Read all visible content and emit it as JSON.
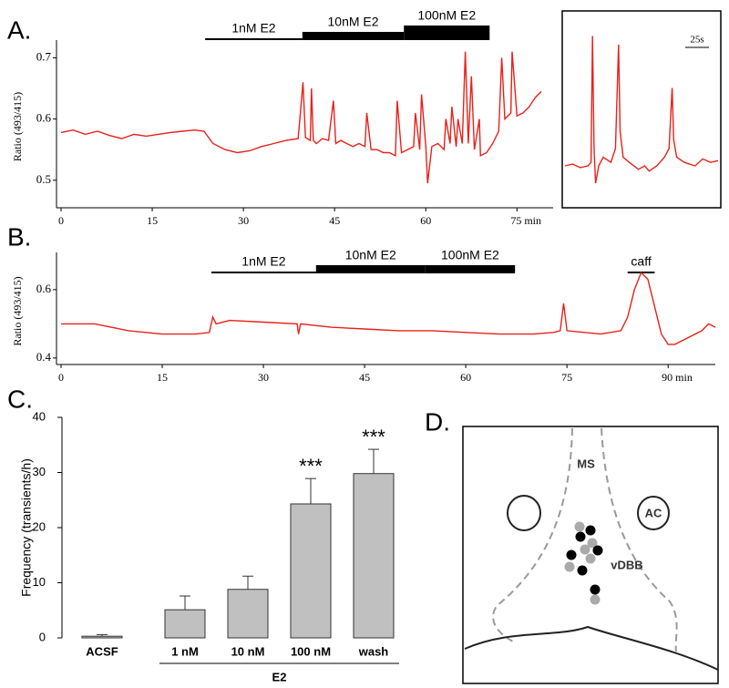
{
  "chart_data": [
    {
      "type": "line",
      "panel_label": "A.",
      "ylabel": "Ratio (493/415)",
      "xlim": [
        0,
        79
      ],
      "ylim": [
        0.455,
        0.72
      ],
      "xticks": [
        0,
        15,
        30,
        45,
        60,
        {
          "value": 75,
          "label": "75 min"
        }
      ],
      "yticks": [
        0.5,
        0.6,
        0.7
      ],
      "treatments": [
        {
          "label": "1nM E2",
          "start": 23.7,
          "end": 39.7,
          "weight": "thin"
        },
        {
          "label": "10nM E2",
          "start": 39.7,
          "end": 56.4,
          "weight": "medium"
        },
        {
          "label": "100nM E2",
          "start": 56.4,
          "end": 70.5,
          "weight": "heavy"
        }
      ],
      "series": [
        {
          "name": "ratio",
          "color": "#e8211b",
          "x": [
            0,
            2,
            4,
            6,
            8,
            10,
            12,
            14,
            16,
            18,
            20,
            22,
            23.5,
            25,
            27,
            29,
            31,
            33,
            35,
            37,
            39,
            39.8,
            40.2,
            41,
            41.2,
            41.5,
            42,
            43,
            44,
            44.8,
            45.2,
            46,
            47,
            48,
            49,
            50,
            50.3,
            51,
            52,
            53,
            54,
            55,
            55.3,
            56,
            57,
            58,
            58.3,
            59,
            59.3,
            60,
            60.3,
            61,
            62,
            63,
            63.3,
            64,
            64.3,
            65,
            65.3,
            66,
            66.5,
            67,
            67.5,
            68,
            68.8,
            69,
            70,
            71,
            72,
            72.5,
            73,
            74,
            74.2,
            75,
            76,
            77,
            78,
            79
          ],
          "values": [
            0.578,
            0.582,
            0.575,
            0.58,
            0.573,
            0.568,
            0.575,
            0.572,
            0.575,
            0.578,
            0.58,
            0.582,
            0.58,
            0.56,
            0.55,
            0.545,
            0.548,
            0.555,
            0.56,
            0.565,
            0.568,
            0.66,
            0.57,
            0.565,
            0.65,
            0.565,
            0.56,
            0.568,
            0.565,
            0.63,
            0.56,
            0.565,
            0.56,
            0.555,
            0.56,
            0.555,
            0.61,
            0.55,
            0.55,
            0.545,
            0.545,
            0.54,
            0.63,
            0.545,
            0.55,
            0.555,
            0.61,
            0.55,
            0.64,
            0.555,
            0.495,
            0.555,
            0.56,
            0.55,
            0.6,
            0.56,
            0.62,
            0.555,
            0.6,
            0.56,
            0.71,
            0.56,
            0.67,
            0.55,
            0.6,
            0.54,
            0.545,
            0.56,
            0.58,
            0.7,
            0.6,
            0.61,
            0.71,
            0.605,
            0.61,
            0.62,
            0.635,
            0.645
          ]
        }
      ]
    },
    {
      "type": "line",
      "scale_bar": "25s",
      "xlim": [
        0,
        100
      ],
      "ylim": [
        0,
        1
      ],
      "series": [
        {
          "name": "inset trace",
          "color": "#e8211b",
          "x": [
            0,
            5,
            10,
            15,
            17,
            18,
            19,
            20,
            22,
            25,
            30,
            33,
            35,
            36,
            38,
            42,
            48,
            52,
            55,
            60,
            65,
            68,
            70,
            71,
            73,
            78,
            85,
            90,
            95,
            100
          ],
          "values": [
            0.2,
            0.21,
            0.19,
            0.2,
            0.22,
            0.95,
            0.3,
            0.1,
            0.2,
            0.25,
            0.22,
            0.3,
            0.9,
            0.4,
            0.25,
            0.22,
            0.18,
            0.2,
            0.17,
            0.2,
            0.25,
            0.3,
            0.65,
            0.35,
            0.25,
            0.22,
            0.2,
            0.24,
            0.22,
            0.23
          ]
        }
      ]
    },
    {
      "type": "line",
      "panel_label": "B.",
      "ylabel": "Ratio (493/415)",
      "xlim": [
        0,
        97
      ],
      "ylim": [
        0.381,
        0.693
      ],
      "xticks": [
        0,
        15,
        30,
        45,
        60,
        75,
        {
          "value": 90,
          "label": "90 min"
        }
      ],
      "yticks": [
        0.4,
        0.6
      ],
      "treatments": [
        {
          "label": "1nM E2",
          "start": 22.3,
          "end": 37.8,
          "weight": "thin"
        },
        {
          "label": "10nM E2",
          "start": 37.8,
          "end": 54,
          "weight": "medium"
        },
        {
          "label": "100nM E2",
          "start": 54,
          "end": 67.3,
          "weight": "medium"
        },
        {
          "label": "caff",
          "start": 84,
          "end": 88,
          "weight": "thin"
        }
      ],
      "series": [
        {
          "name": "ratio",
          "color": "#e8211b",
          "x": [
            0,
            5,
            10,
            15,
            20,
            22,
            22.5,
            23,
            25,
            30,
            35,
            35.2,
            35.5,
            40,
            45,
            50,
            55,
            60,
            65,
            70,
            73,
            74,
            74.5,
            75,
            80,
            83,
            84,
            85,
            86,
            87,
            88,
            89,
            90,
            91,
            93,
            95,
            96,
            97
          ],
          "values": [
            0.5,
            0.5,
            0.48,
            0.47,
            0.47,
            0.475,
            0.52,
            0.5,
            0.51,
            0.505,
            0.5,
            0.47,
            0.5,
            0.49,
            0.485,
            0.48,
            0.48,
            0.475,
            0.47,
            0.47,
            0.475,
            0.48,
            0.56,
            0.48,
            0.47,
            0.48,
            0.52,
            0.6,
            0.65,
            0.63,
            0.55,
            0.47,
            0.44,
            0.44,
            0.46,
            0.48,
            0.5,
            0.49
          ]
        }
      ]
    },
    {
      "type": "bar",
      "panel_label": "C.",
      "ylabel": "Frequency (transients/h)",
      "categories": [
        "ACSF",
        "1 nM",
        "10 nM",
        "100 nM",
        "wash"
      ],
      "group_label": "E2",
      "values": [
        0.3,
        5.1,
        8.8,
        24.3,
        29.8
      ],
      "errors": [
        0.3,
        2.5,
        2.4,
        4.6,
        4.4
      ],
      "significance": [
        null,
        null,
        null,
        "***",
        "***"
      ],
      "color": "#c0c0c0",
      "ylim": [
        0,
        40
      ],
      "yticks": [
        0,
        10,
        20,
        30,
        40
      ]
    }
  ],
  "diagram": {
    "panel_label": "D.",
    "labels": [
      "MS",
      "AC",
      "vDBB"
    ]
  }
}
